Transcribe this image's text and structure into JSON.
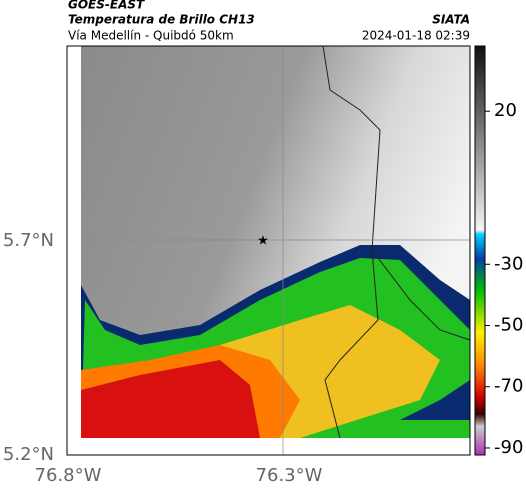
{
  "header": {
    "source": "GOES-EAST",
    "title": "Temperatura de Brillo CH13",
    "route": "Vía Medellín - Quibdó 50km",
    "brand": "SIATA",
    "timestamp": "2024-01-18 02:39"
  },
  "map": {
    "lat_labels": [
      "5.7°N",
      "5.2°N"
    ],
    "lon_labels": [
      "76.8°W",
      "76.3°W"
    ]
  },
  "colorbar": {
    "range": [
      -92.3,
      41.3
    ],
    "ticks": [
      20,
      -30,
      -50,
      -70,
      -90
    ]
  }
}
